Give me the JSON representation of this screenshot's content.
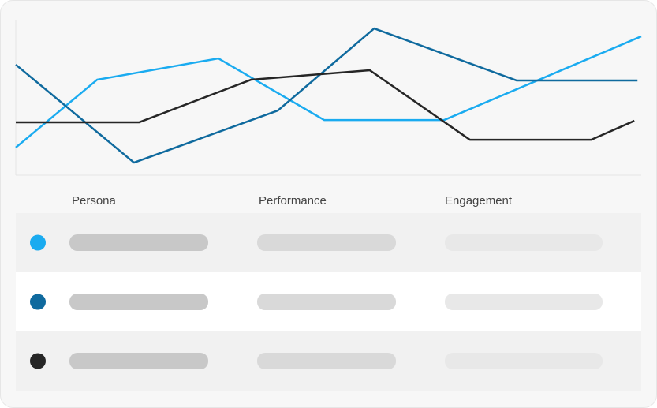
{
  "chart_data": {
    "type": "line",
    "xlim": [
      0,
      100
    ],
    "ylim": [
      0,
      100
    ],
    "series": [
      {
        "color": "#1aabf0",
        "x": [
          0,
          13,
          32.4,
          49.3,
          68.5,
          100
        ],
        "values": [
          17.8,
          61.4,
          75.1,
          35.5,
          35.5,
          89.3
        ]
      },
      {
        "color": "#0f6a9e",
        "x": [
          0,
          18.9,
          41.9,
          57.3,
          80.1,
          99.4
        ],
        "values": [
          71.1,
          8.1,
          41.6,
          94.4,
          60.9,
          60.9
        ]
      },
      {
        "color": "#262626",
        "x": [
          0,
          19.7,
          37.6,
          56.6,
          72.6,
          92,
          98.9
        ],
        "values": [
          34,
          34,
          61.4,
          67.5,
          22.8,
          22.8,
          35
        ]
      }
    ]
  },
  "table": {
    "columns": [
      "Persona",
      "Performance",
      "Engagement"
    ]
  }
}
